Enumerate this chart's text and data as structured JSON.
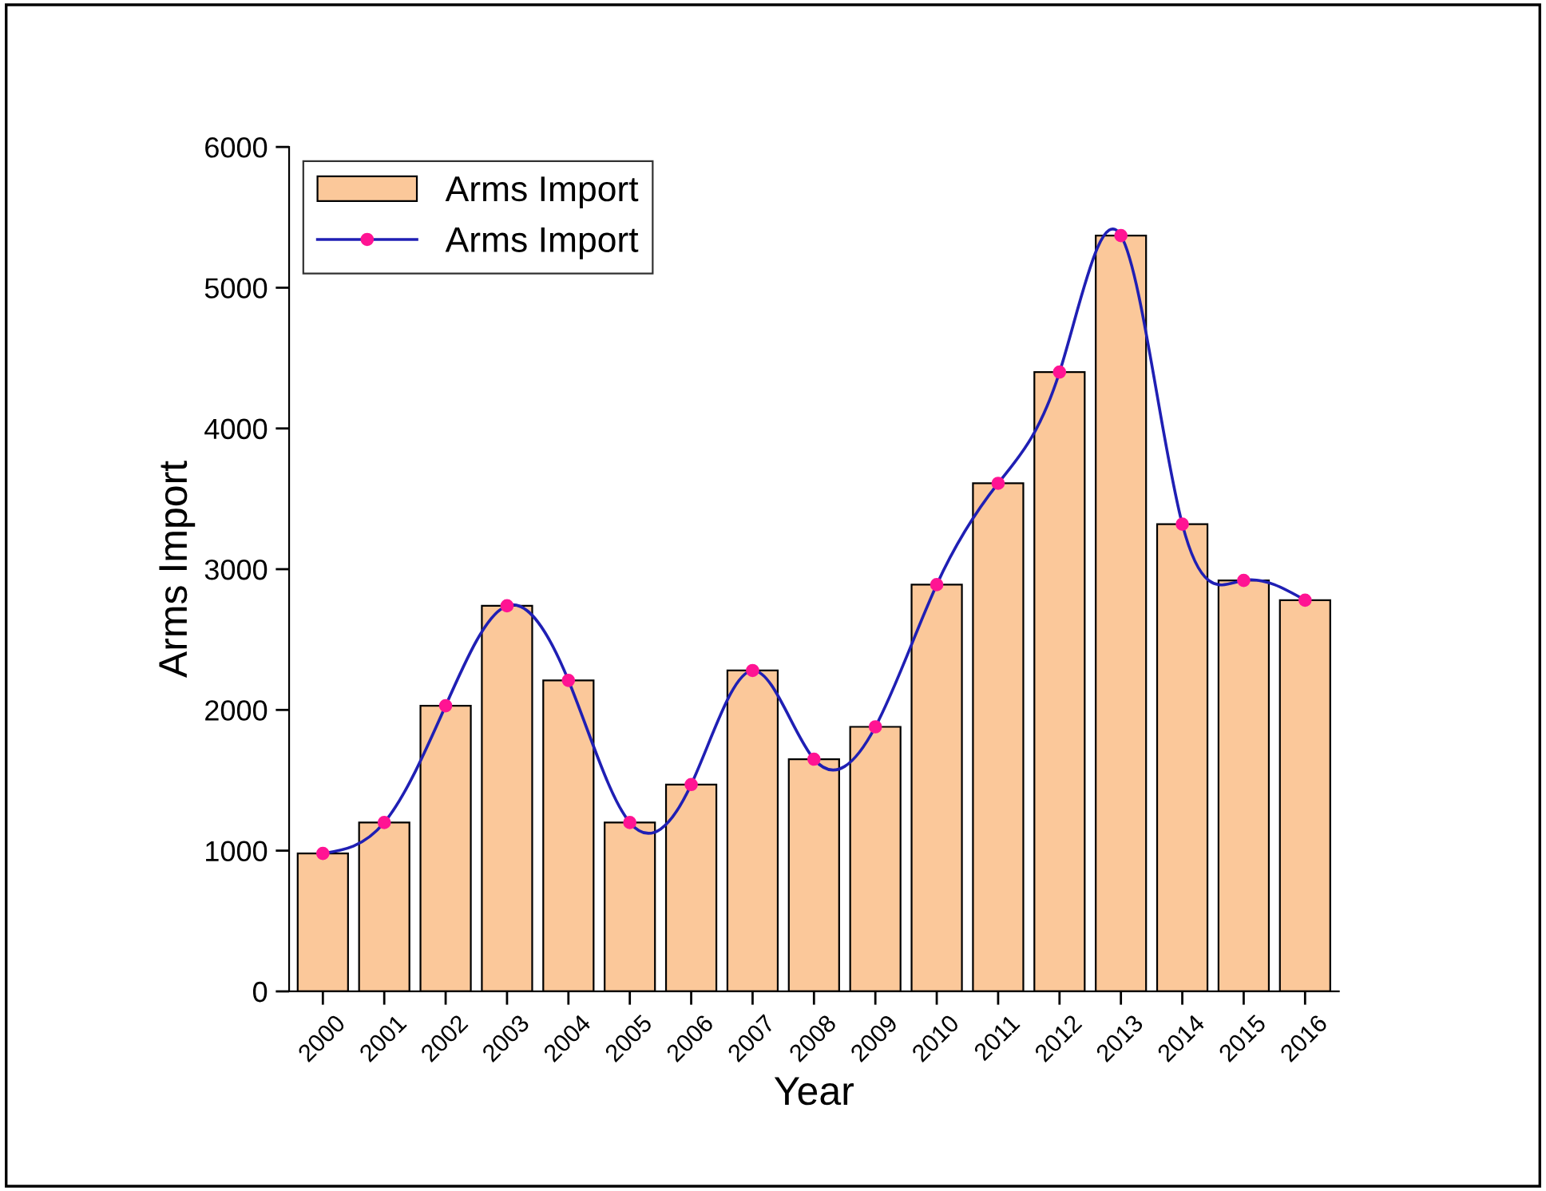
{
  "chart_data": {
    "type": "bar",
    "xlabel": "Year",
    "ylabel": "Arms Import",
    "categories": [
      "2000",
      "2001",
      "2002",
      "2003",
      "2004",
      "2005",
      "2006",
      "2007",
      "2008",
      "2009",
      "2010",
      "2011",
      "2012",
      "2013",
      "2014",
      "2015",
      "2016"
    ],
    "series": [
      {
        "name": "Arms Import",
        "type": "bar",
        "color": "#fbc89a",
        "values": [
          980,
          1200,
          2030,
          2740,
          2210,
          1200,
          1470,
          2280,
          1650,
          1880,
          2890,
          3610,
          4400,
          5370,
          3320,
          2920,
          2780
        ]
      },
      {
        "name": "Arms Import",
        "type": "line",
        "color": "#1f1fb4",
        "marker": "circle",
        "values": [
          980,
          1200,
          2030,
          2740,
          2210,
          1200,
          1470,
          2280,
          1650,
          1880,
          2890,
          3610,
          4400,
          5370,
          3320,
          2920,
          2780
        ]
      }
    ],
    "ylim": [
      0,
      6000
    ],
    "yticks": [
      0,
      1000,
      2000,
      3000,
      4000,
      5000,
      6000
    ],
    "grid": false,
    "legend": "top left"
  }
}
